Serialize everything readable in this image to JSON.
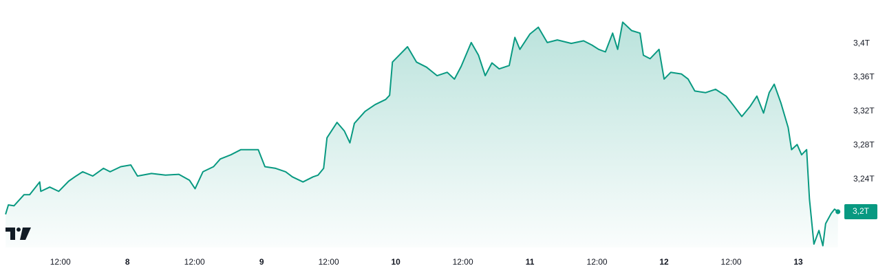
{
  "chart_data": {
    "type": "area",
    "x": [
      -21.8,
      -21.3,
      -20.3,
      -18.5,
      -17.5,
      -15.7,
      -15.5,
      -13.9,
      -12.3,
      -10.5,
      -9.2,
      -8.0,
      -6.2,
      -4.3,
      -3.1,
      -1.2,
      0.6,
      1.8,
      4.3,
      6.8,
      9.2,
      11.1,
      12.1,
      13.5,
      15.4,
      16.6,
      18.5,
      20.3,
      22.2,
      23.4,
      24.6,
      26.5,
      28.3,
      29.5,
      31.4,
      33.2,
      34.1,
      35.1,
      35.7,
      37.5,
      38.8,
      39.8,
      40.6,
      42.5,
      44.3,
      46.2,
      46.9,
      47.4,
      48.6,
      50.1,
      51.7,
      53.5,
      55.4,
      57.2,
      58.5,
      59.7,
      61.5,
      62.8,
      64.0,
      65.2,
      66.5,
      68.3,
      69.3,
      70.2,
      72.0,
      73.5,
      75.1,
      76.9,
      79.4,
      81.6,
      83.1,
      84.3,
      85.5,
      86.8,
      87.7,
      88.6,
      90.2,
      91.7,
      92.3,
      93.5,
      95.1,
      96.0,
      97.2,
      99.1,
      100.3,
      101.5,
      103.4,
      105.2,
      107.1,
      108.3,
      109.9,
      111.4,
      112.6,
      113.8,
      114.8,
      115.7,
      116.9,
      118.2,
      118.8,
      119.8,
      120.6,
      121.5,
      122.0,
      122.8,
      123.7,
      124.4,
      124.9,
      125.9,
      126.5,
      127.1
    ],
    "values": [
      3.199,
      3.21,
      3.209,
      3.222,
      3.222,
      3.237,
      3.226,
      3.231,
      3.226,
      3.238,
      3.244,
      3.249,
      3.244,
      3.253,
      3.249,
      3.255,
      3.257,
      3.244,
      3.247,
      3.245,
      3.246,
      3.239,
      3.229,
      3.249,
      3.255,
      3.264,
      3.269,
      3.275,
      3.275,
      3.275,
      3.255,
      3.253,
      3.249,
      3.243,
      3.237,
      3.243,
      3.245,
      3.253,
      3.289,
      3.307,
      3.297,
      3.283,
      3.306,
      3.32,
      3.328,
      3.334,
      3.339,
      3.378,
      3.386,
      3.396,
      3.378,
      3.372,
      3.362,
      3.366,
      3.358,
      3.373,
      3.401,
      3.386,
      3.362,
      3.377,
      3.37,
      3.374,
      3.407,
      3.393,
      3.411,
      3.419,
      3.401,
      3.404,
      3.4,
      3.403,
      3.398,
      3.393,
      3.39,
      3.412,
      3.393,
      3.425,
      3.415,
      3.412,
      3.386,
      3.382,
      3.393,
      3.358,
      3.366,
      3.364,
      3.358,
      3.344,
      3.342,
      3.346,
      3.338,
      3.328,
      3.314,
      3.326,
      3.338,
      3.318,
      3.342,
      3.352,
      3.33,
      3.301,
      3.275,
      3.281,
      3.269,
      3.275,
      3.217,
      3.164,
      3.18,
      3.162,
      3.188,
      3.2,
      3.205,
      3.202
    ],
    "value_labels": [
      null,
      null,
      null,
      null,
      null,
      null,
      null,
      null,
      null,
      null,
      null,
      null,
      null,
      null,
      null,
      null,
      null,
      null,
      null,
      null,
      null,
      null,
      null,
      null,
      null,
      null,
      null,
      null,
      null,
      null,
      null,
      null,
      null,
      null,
      null,
      null,
      null,
      null,
      null,
      null,
      null,
      null,
      null,
      null,
      null,
      null,
      null,
      null,
      null,
      null,
      null,
      null,
      null,
      null,
      null,
      null,
      null,
      null,
      null,
      null,
      null,
      null,
      null,
      null,
      null,
      null,
      null,
      null,
      null,
      null,
      null,
      null,
      null,
      null,
      null,
      null,
      null,
      null,
      null,
      null,
      null,
      null,
      null,
      null,
      null,
      null,
      null,
      null,
      null,
      null,
      null,
      null,
      null,
      null,
      null,
      null,
      null,
      null,
      null,
      null,
      null,
      null,
      null,
      null,
      null,
      null,
      null,
      null,
      null,
      "3,2T"
    ],
    "color": "#089981",
    "xlim": [
      -22.8,
      128
    ],
    "xticks": [
      {
        "value": -12,
        "label": "12:00"
      },
      {
        "value": 0,
        "label": "8"
      },
      {
        "value": 12,
        "label": "12:00"
      },
      {
        "value": 24,
        "label": "9"
      },
      {
        "value": 36,
        "label": "12:00"
      },
      {
        "value": 48,
        "label": "10"
      },
      {
        "value": 60,
        "label": "12:00"
      },
      {
        "value": 72,
        "label": "11"
      },
      {
        "value": 84,
        "label": "12:00"
      },
      {
        "value": 96,
        "label": "12"
      },
      {
        "value": 108,
        "label": "12:00"
      },
      {
        "value": 120,
        "label": "13"
      }
    ],
    "ylim": [
      3.16,
      3.451
    ],
    "yticks": [
      {
        "value": 3.24,
        "label": "3,24T"
      },
      {
        "value": 3.28,
        "label": "3,28T"
      },
      {
        "value": 3.32,
        "label": "3,32T"
      },
      {
        "value": 3.36,
        "label": "3,36T"
      },
      {
        "value": 3.4,
        "label": "3,4T"
      }
    ],
    "grid": false
  }
}
